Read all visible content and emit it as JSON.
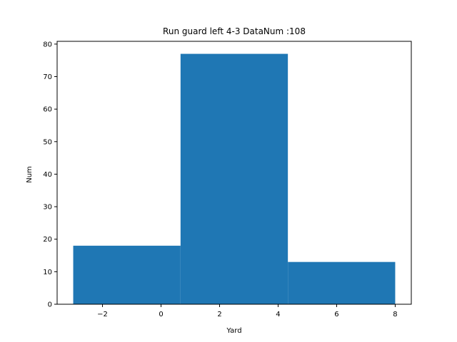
{
  "chart_data": {
    "type": "bar",
    "title": "Run guard left    4-3    DataNum :108",
    "xlabel": "Yard",
    "ylabel": "Num",
    "bins": [
      {
        "x0": -3.0,
        "x1": 0.6667,
        "value": 18
      },
      {
        "x0": 0.6667,
        "x1": 4.3333,
        "value": 77
      },
      {
        "x0": 4.3333,
        "x1": 8.0,
        "value": 13
      }
    ],
    "xlim": [
      -3.55,
      8.55
    ],
    "ylim": [
      0,
      80.85
    ],
    "xticks": [
      -2,
      0,
      2,
      4,
      6,
      8
    ],
    "xtick_labels": [
      "−2",
      "0",
      "2",
      "4",
      "6",
      "8"
    ],
    "yticks": [
      0,
      10,
      20,
      30,
      40,
      50,
      60,
      70,
      80
    ],
    "ytick_labels": [
      "0",
      "10",
      "20",
      "30",
      "40",
      "50",
      "60",
      "70",
      "80"
    ],
    "bar_color": "#1f77b4",
    "grid": false,
    "legend": "none"
  }
}
